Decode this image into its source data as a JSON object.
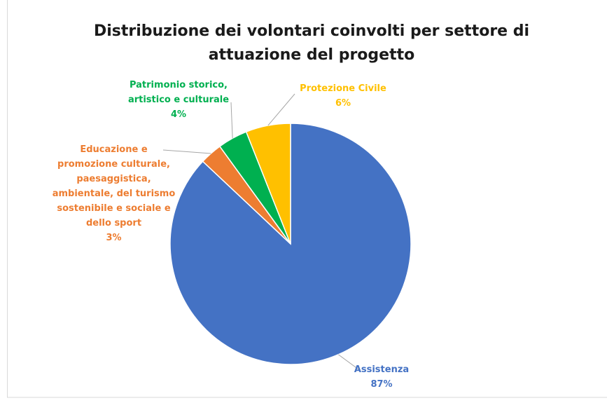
{
  "chart_data": {
    "type": "pie",
    "title": "Distribuzione dei volontari coinvolti per settore di attuazione del progetto",
    "categories": [
      "Assistenza",
      "Educazione e promozione culturale, paesaggistica, ambientale, del turismo sostenibile e sociale e dello sport",
      "Patrimonio storico, artistico e culturale",
      "Protezione Civile"
    ],
    "values": [
      87,
      3,
      4,
      6
    ],
    "value_labels": [
      "87%",
      "3%",
      "4%",
      "6%"
    ],
    "colors": [
      "#4472c4",
      "#ed7d31",
      "#00b050",
      "#ffc000"
    ]
  }
}
